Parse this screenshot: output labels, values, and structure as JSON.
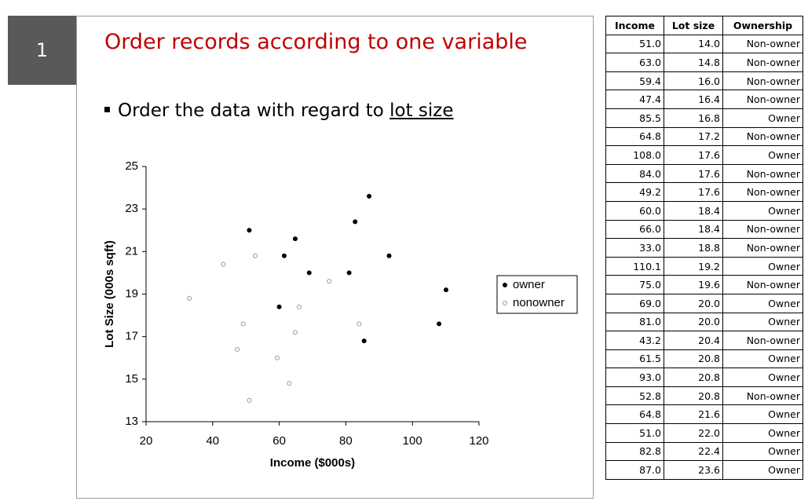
{
  "slide": {
    "number": "1",
    "title": "Order records according to one variable",
    "bullet": {
      "text": "Order the data with regard to",
      "underlined": "lot size"
    }
  },
  "chart_data": {
    "type": "scatter",
    "x_label": "Income ($000s)",
    "y_label": "Lot Size (000s sqft)",
    "xlim": [
      20,
      120
    ],
    "xticks": [
      20,
      40,
      60,
      80,
      100,
      120
    ],
    "ylim": [
      13,
      25
    ],
    "yticks": [
      13,
      15,
      17,
      19,
      21,
      23,
      25
    ],
    "legend": "right",
    "series": [
      {
        "name": "owner",
        "color": "#000000",
        "marker": "filled",
        "x": [
          85.5,
          108.0,
          60.0,
          110.1,
          69.0,
          81.0,
          61.5,
          93.0,
          64.8,
          51.0,
          82.8,
          87.0
        ],
        "values": [
          16.8,
          17.6,
          18.4,
          19.2,
          20.0,
          20.0,
          20.8,
          20.8,
          21.6,
          22.0,
          22.4,
          23.6
        ]
      },
      {
        "name": "nonowner",
        "color": "#999999",
        "marker": "hollow",
        "x": [
          51.0,
          63.0,
          59.4,
          47.4,
          64.8,
          84.0,
          49.2,
          66.0,
          33.0,
          75.0,
          43.2,
          52.8
        ],
        "values": [
          14.0,
          14.8,
          16.0,
          16.4,
          17.2,
          17.6,
          17.6,
          18.4,
          18.8,
          19.6,
          20.4,
          20.8
        ]
      }
    ]
  },
  "table": {
    "headers": [
      "Income",
      "Lot size",
      "Ownership"
    ],
    "rows": [
      [
        "51.0",
        "14.0",
        "Non-owner"
      ],
      [
        "63.0",
        "14.8",
        "Non-owner"
      ],
      [
        "59.4",
        "16.0",
        "Non-owner"
      ],
      [
        "47.4",
        "16.4",
        "Non-owner"
      ],
      [
        "85.5",
        "16.8",
        "Owner"
      ],
      [
        "64.8",
        "17.2",
        "Non-owner"
      ],
      [
        "108.0",
        "17.6",
        "Owner"
      ],
      [
        "84.0",
        "17.6",
        "Non-owner"
      ],
      [
        "49.2",
        "17.6",
        "Non-owner"
      ],
      [
        "60.0",
        "18.4",
        "Owner"
      ],
      [
        "66.0",
        "18.4",
        "Non-owner"
      ],
      [
        "33.0",
        "18.8",
        "Non-owner"
      ],
      [
        "110.1",
        "19.2",
        "Owner"
      ],
      [
        "75.0",
        "19.6",
        "Non-owner"
      ],
      [
        "69.0",
        "20.0",
        "Owner"
      ],
      [
        "81.0",
        "20.0",
        "Owner"
      ],
      [
        "43.2",
        "20.4",
        "Non-owner"
      ],
      [
        "61.5",
        "20.8",
        "Owner"
      ],
      [
        "93.0",
        "20.8",
        "Owner"
      ],
      [
        "52.8",
        "20.8",
        "Non-owner"
      ],
      [
        "64.8",
        "21.6",
        "Owner"
      ],
      [
        "51.0",
        "22.0",
        "Owner"
      ],
      [
        "82.8",
        "22.4",
        "Owner"
      ],
      [
        "87.0",
        "23.6",
        "Owner"
      ]
    ]
  }
}
